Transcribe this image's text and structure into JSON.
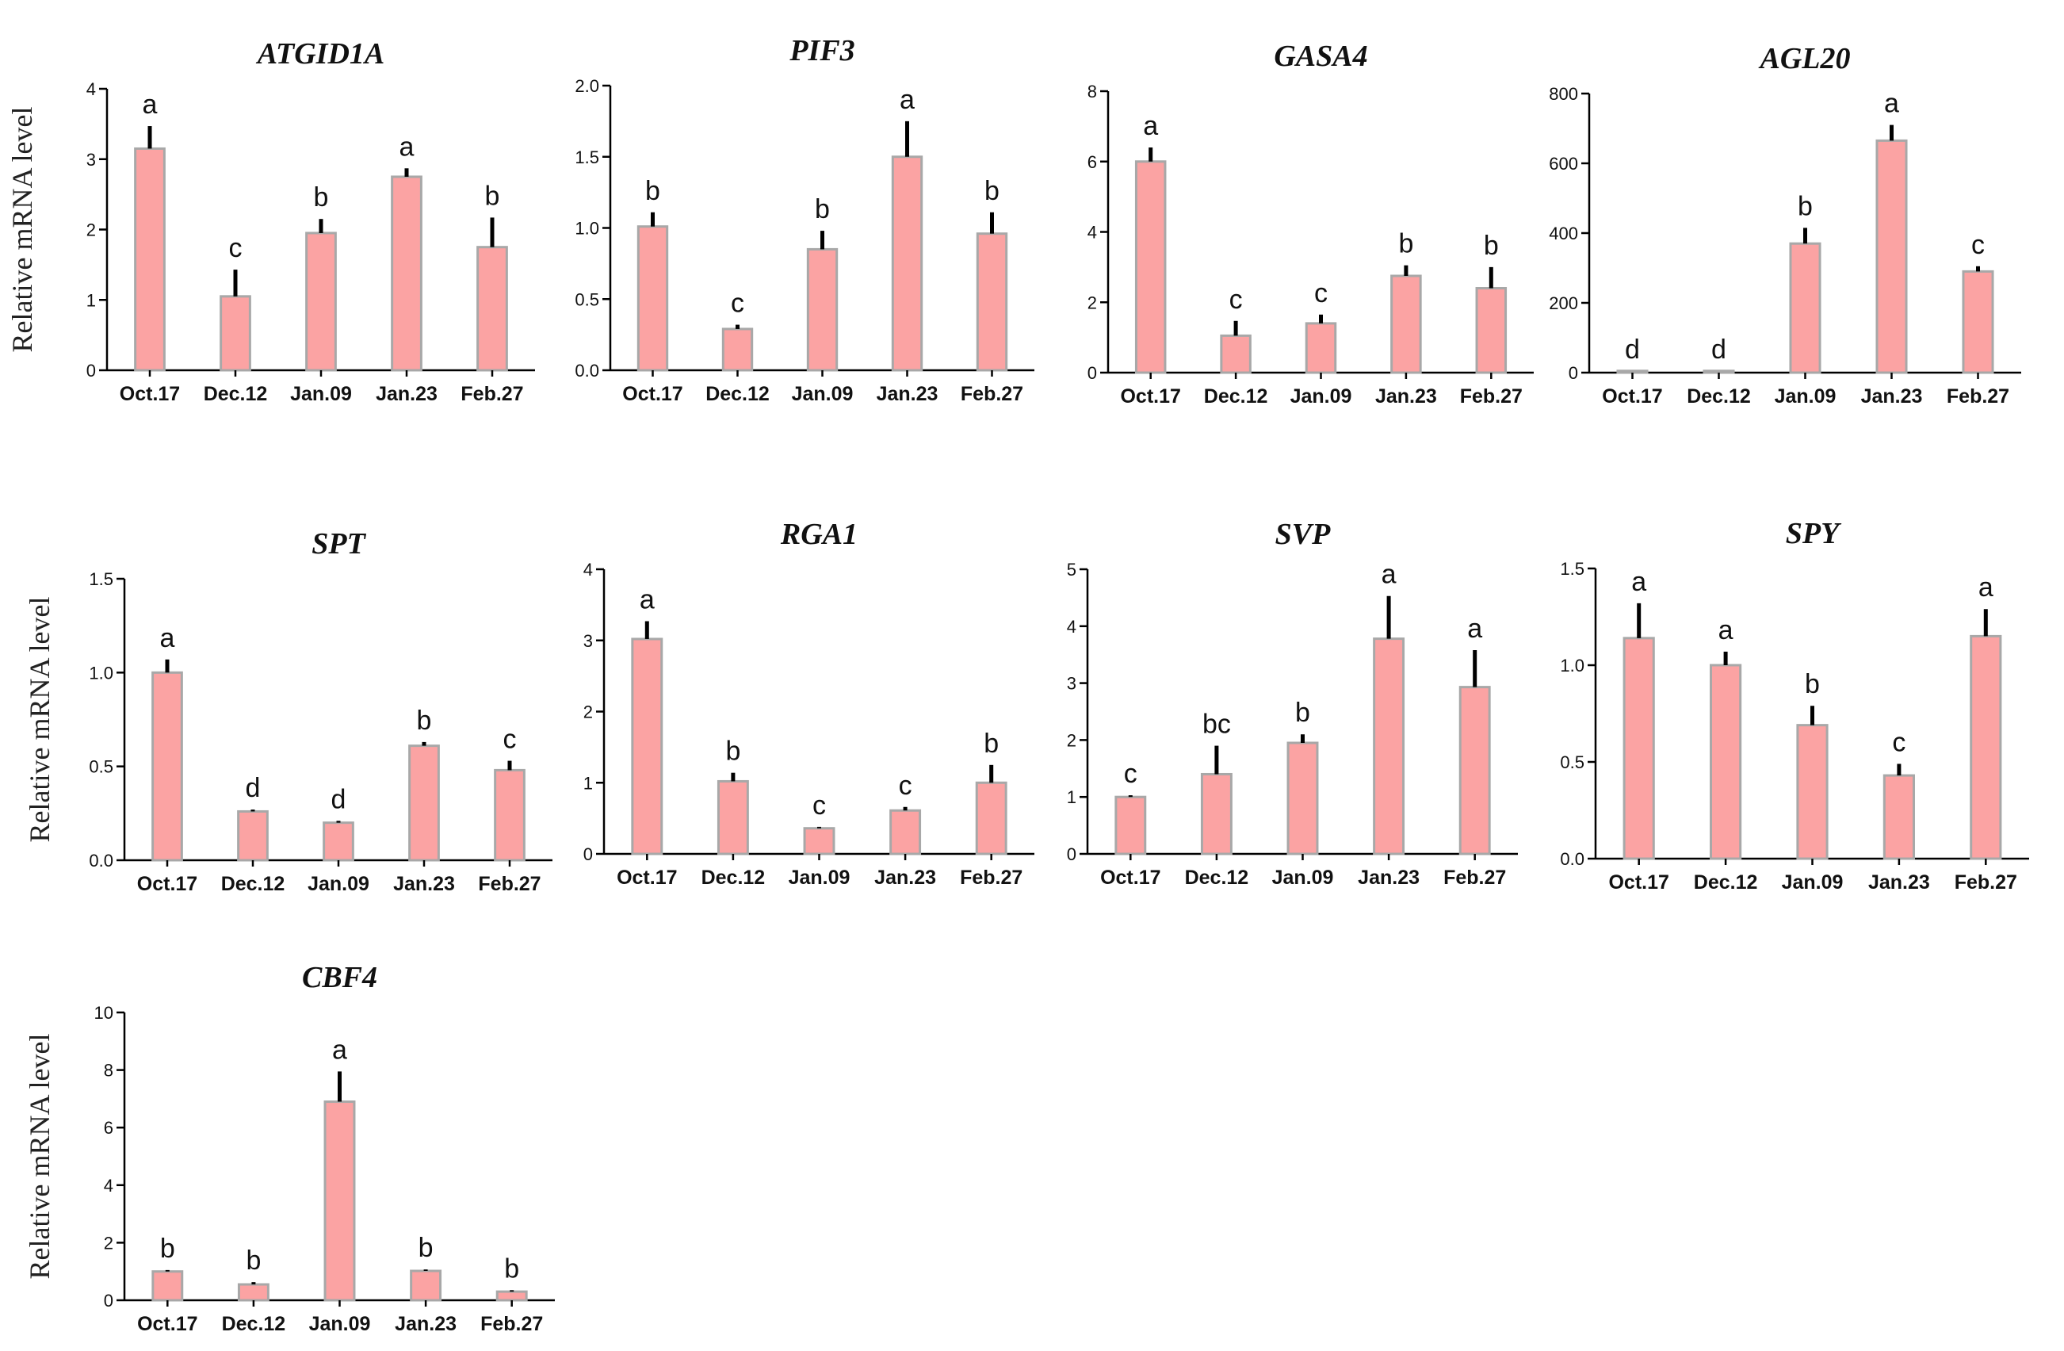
{
  "colors": {
    "bar_fill": "#fba3a3",
    "bar_edge": "#a8a8a8",
    "axis": "#000000",
    "error": "#000000"
  },
  "chart_data": [
    {
      "type": "bar",
      "title": "ATGID1A",
      "ylabel": "Relative mRNA level",
      "categories": [
        "Oct.17",
        "Dec.12",
        "Jan.09",
        "Jan.23",
        "Feb.27"
      ],
      "values": [
        3.15,
        1.05,
        1.95,
        2.75,
        1.75
      ],
      "errors": [
        0.32,
        0.38,
        0.2,
        0.12,
        0.42
      ],
      "letters": [
        "a",
        "c",
        "b",
        "a",
        "b"
      ],
      "ylim": [
        0,
        4
      ],
      "yticks": [
        "0",
        "1",
        "2",
        "3",
        "4"
      ]
    },
    {
      "type": "bar",
      "title": "PIF3",
      "ylabel": "",
      "categories": [
        "Oct.17",
        "Dec.12",
        "Jan.09",
        "Jan.23",
        "Feb.27"
      ],
      "values": [
        1.01,
        0.29,
        0.85,
        1.5,
        0.96
      ],
      "errors": [
        0.1,
        0.03,
        0.13,
        0.25,
        0.15
      ],
      "letters": [
        "b",
        "c",
        "b",
        "a",
        "b"
      ],
      "ylim": [
        0,
        2
      ],
      "yticks": [
        "0.0",
        "0.5",
        "1.0",
        "1.5",
        "2.0"
      ]
    },
    {
      "type": "bar",
      "title": "GASA4",
      "ylabel": "",
      "categories": [
        "Oct.17",
        "Dec.12",
        "Jan.09",
        "Jan.23",
        "Feb.27"
      ],
      "values": [
        6.0,
        1.05,
        1.4,
        2.75,
        2.4
      ],
      "errors": [
        0.4,
        0.42,
        0.25,
        0.3,
        0.6
      ],
      "letters": [
        "a",
        "c",
        "c",
        "b",
        "b"
      ],
      "ylim": [
        0,
        8
      ],
      "yticks": [
        "0",
        "2",
        "4",
        "6",
        "8"
      ]
    },
    {
      "type": "bar",
      "title": "AGL20",
      "ylabel": "",
      "categories": [
        "Oct.17",
        "Dec.12",
        "Jan.09",
        "Jan.23",
        "Feb.27"
      ],
      "values": [
        5,
        5,
        370,
        665,
        290
      ],
      "errors": [
        0,
        0,
        45,
        45,
        15
      ],
      "letters": [
        "d",
        "d",
        "b",
        "a",
        "c"
      ],
      "ylim": [
        0,
        800
      ],
      "yticks": [
        "0",
        "200",
        "400",
        "600",
        "800"
      ]
    },
    {
      "type": "bar",
      "title": "SPT",
      "ylabel": "Relative mRNA level",
      "categories": [
        "Oct.17",
        "Dec.12",
        "Jan.09",
        "Jan.23",
        "Feb.27"
      ],
      "values": [
        1.0,
        0.26,
        0.2,
        0.61,
        0.48
      ],
      "errors": [
        0.07,
        0.01,
        0.01,
        0.02,
        0.05
      ],
      "letters": [
        "a",
        "d",
        "d",
        "b",
        "c"
      ],
      "ylim": [
        0,
        1.5
      ],
      "yticks": [
        "0.0",
        "0.5",
        "1.0",
        "1.5"
      ]
    },
    {
      "type": "bar",
      "title": "RGA1",
      "ylabel": "",
      "categories": [
        "Oct.17",
        "Dec.12",
        "Jan.09",
        "Jan.23",
        "Feb.27"
      ],
      "values": [
        3.02,
        1.02,
        0.36,
        0.61,
        1.0
      ],
      "errors": [
        0.25,
        0.12,
        0.02,
        0.05,
        0.25
      ],
      "letters": [
        "a",
        "b",
        "c",
        "c",
        "b"
      ],
      "ylim": [
        0,
        4
      ],
      "yticks": [
        "0",
        "1",
        "2",
        "3",
        "4"
      ]
    },
    {
      "type": "bar",
      "title": "SVP",
      "ylabel": "",
      "categories": [
        "Oct.17",
        "Dec.12",
        "Jan.09",
        "Jan.23",
        "Feb.27"
      ],
      "values": [
        1.0,
        1.4,
        1.95,
        3.78,
        2.93
      ],
      "errors": [
        0.03,
        0.5,
        0.15,
        0.75,
        0.65
      ],
      "letters": [
        "c",
        "bc",
        "b",
        "a",
        "a"
      ],
      "ylim": [
        0,
        5
      ],
      "yticks": [
        "0",
        "1",
        "2",
        "3",
        "4",
        "5"
      ]
    },
    {
      "type": "bar",
      "title": "SPY",
      "ylabel": "",
      "categories": [
        "Oct.17",
        "Dec.12",
        "Jan.09",
        "Jan.23",
        "Feb.27"
      ],
      "values": [
        1.14,
        1.0,
        0.69,
        0.43,
        1.15
      ],
      "errors": [
        0.18,
        0.07,
        0.1,
        0.06,
        0.14
      ],
      "letters": [
        "a",
        "a",
        "b",
        "c",
        "a"
      ],
      "ylim": [
        0,
        1.5
      ],
      "yticks": [
        "0.0",
        "0.5",
        "1.0",
        "1.5"
      ]
    },
    {
      "type": "bar",
      "title": "CBF4",
      "ylabel": "Relative mRNA level",
      "categories": [
        "Oct.17",
        "Dec.12",
        "Jan.09",
        "Jan.23",
        "Feb.27"
      ],
      "values": [
        1.0,
        0.55,
        6.9,
        1.02,
        0.3
      ],
      "errors": [
        0.05,
        0.08,
        1.05,
        0.05,
        0.05
      ],
      "letters": [
        "b",
        "b",
        "a",
        "b",
        "b"
      ],
      "ylim": [
        0,
        10
      ],
      "yticks": [
        "0",
        "2",
        "4",
        "6",
        "8",
        "10"
      ]
    }
  ]
}
